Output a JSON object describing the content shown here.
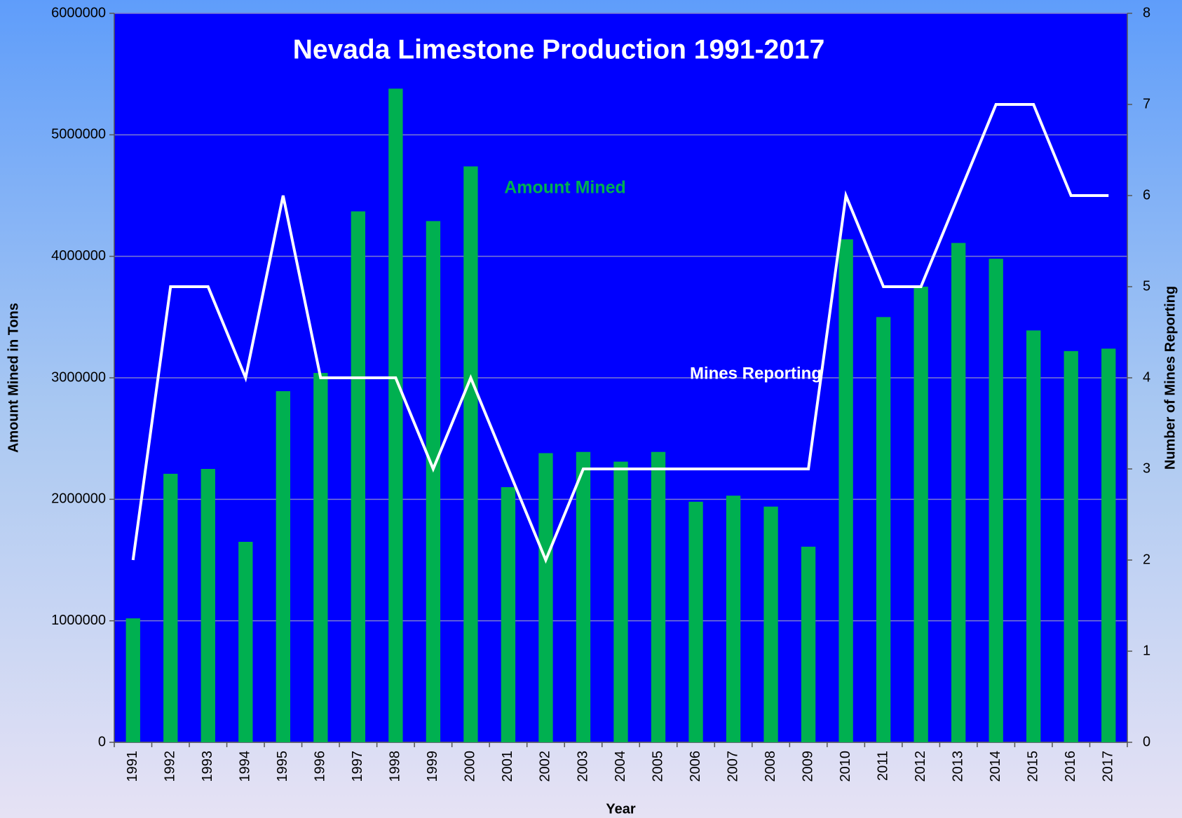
{
  "chart_data": {
    "type": "bar",
    "title": "Nevada Limestone Production 1991-2017",
    "x_label": "Year",
    "y_label": "Amount Mined in Tons",
    "y2_label": "Number of Mines Reporting",
    "annotations": [
      "Amount Mined",
      "Mines Reporting"
    ],
    "categories": [
      "1991",
      "1992",
      "1993",
      "1994",
      "1995",
      "1996",
      "1997",
      "1998",
      "1999",
      "2000",
      "2001",
      "2002",
      "2003",
      "2004",
      "2005",
      "2006",
      "2007",
      "2008",
      "2009",
      "2010",
      "2011",
      "2012",
      "2013",
      "2014",
      "2015",
      "2016",
      "2017"
    ],
    "series": [
      {
        "name": "Amount Mined",
        "type": "bar",
        "axis": "y",
        "color": "#00b050",
        "values": [
          1020000,
          2210000,
          2250000,
          1650000,
          2890000,
          3040000,
          4370000,
          5380000,
          4290000,
          4740000,
          2100000,
          2380000,
          2390000,
          2310000,
          2390000,
          1980000,
          2030000,
          1940000,
          1610000,
          4140000,
          3500000,
          3750000,
          4110000,
          3980000,
          3390000,
          3220000,
          3240000
        ]
      },
      {
        "name": "Mines Reporting",
        "type": "line",
        "axis": "y2",
        "color": "#ffffff",
        "values": [
          2,
          5,
          5,
          4,
          6,
          4,
          4,
          4,
          3,
          4,
          3,
          2,
          3,
          3,
          3,
          3,
          3,
          3,
          3,
          6,
          5,
          5,
          6,
          7,
          7,
          6,
          6
        ]
      }
    ],
    "ylim": [
      0,
      6000000
    ],
    "yticks": [
      0,
      1000000,
      2000000,
      3000000,
      4000000,
      5000000,
      6000000
    ],
    "y2lim": [
      0,
      8
    ],
    "y2ticks": [
      0,
      1,
      2,
      3,
      4,
      5,
      6,
      7,
      8
    ],
    "grid": true,
    "plot_background": "#0000ff"
  }
}
